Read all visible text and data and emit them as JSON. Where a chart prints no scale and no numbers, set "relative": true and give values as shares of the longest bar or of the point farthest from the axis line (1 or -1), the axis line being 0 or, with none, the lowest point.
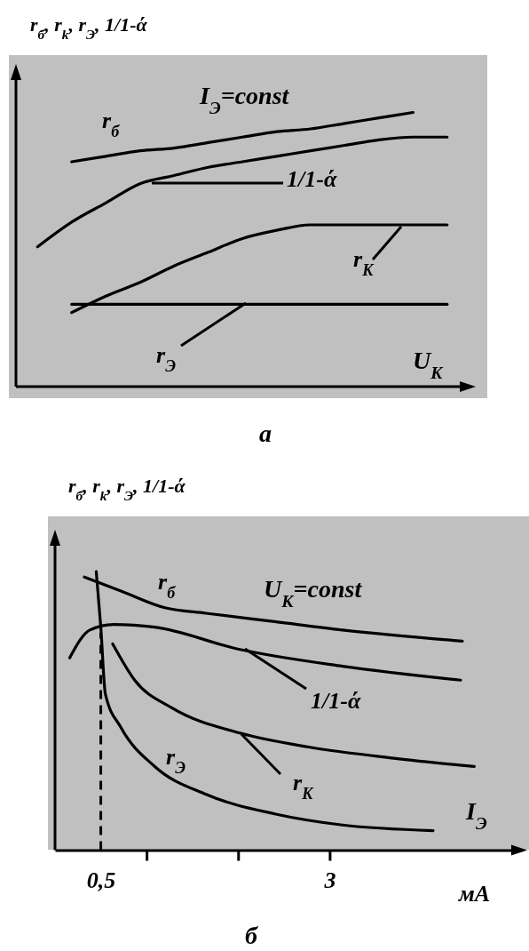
{
  "chart_data": [
    {
      "type": "line",
      "ylabel": "r$_{б}$, r$_{k}$, r$_{Э}$, 1/1-ά",
      "xlabel": "U$_{K}$",
      "relative": true,
      "tick_labels": false,
      "legend": false,
      "grid": false,
      "marker": "none",
      "line_style": "solid",
      "categories": [
        null,
        null,
        null,
        null,
        null,
        null,
        null,
        null,
        null,
        null,
        null,
        null,
        null
      ],
      "annotations": [
        "I$_{Э}$=const",
        "а"
      ],
      "series": [
        {
          "name": "r$_{б}$",
          "color": "#000000",
          "values": [
            null,
            0.82,
            0.84,
            0.86,
            0.87,
            0.89,
            0.91,
            0.93,
            0.94,
            0.96,
            0.98,
            1.0,
            null
          ]
        },
        {
          "name": "1/1-ά",
          "color": "#000000",
          "values": [
            0.51,
            0.6,
            0.67,
            0.74,
            0.77,
            0.8,
            0.82,
            0.84,
            0.86,
            0.88,
            0.9,
            0.91,
            0.91
          ]
        },
        {
          "name": "r$_{K}$",
          "color": "#000000",
          "values": [
            null,
            0.27,
            0.33,
            0.38,
            0.44,
            0.49,
            0.54,
            0.57,
            0.59,
            0.59,
            0.59,
            0.59,
            0.59
          ]
        },
        {
          "name": "r$_{Э}$",
          "color": "#000000",
          "values": [
            null,
            0.3,
            0.3,
            0.3,
            0.3,
            0.3,
            0.3,
            0.3,
            0.3,
            0.3,
            0.3,
            0.3,
            0.3
          ]
        }
      ]
    },
    {
      "type": "line",
      "ylabel": "r$_{б}$, r$_{k}$, r$_{Э}$, 1/1-ά",
      "xlabel": "I$_{Э}$",
      "relative": true,
      "tick_labels": "x",
      "legend": false,
      "grid": false,
      "marker": "none",
      "line_style": "solid",
      "xlim": [
        0,
        5.1
      ],
      "xticks": [
        {
          "value": 0.5,
          "label": "0,5"
        },
        {
          "value": 1,
          "label": null
        },
        {
          "value": 2,
          "label": null
        },
        {
          "value": 3,
          "label": "3"
        }
      ],
      "ref_lines": [
        {
          "axis": "x",
          "value": 0.5,
          "line_style": "dashed"
        }
      ],
      "annotations": [
        "U$_{К}$=const",
        "мА",
        "б"
      ],
      "series": [
        {
          "name": "r$_{б}$",
          "color": "#000000",
          "x": [
            0.32,
            0.72,
            1.2,
            1.65,
            2.4,
            3.14,
            4.45
          ],
          "values": [
            0.98,
            0.93,
            0.87,
            0.85,
            0.82,
            0.79,
            0.75
          ]
        },
        {
          "name": "1/1-ά",
          "color": "#000000",
          "x": [
            0.16,
            0.38,
            0.64,
            1.09,
            2.02,
            3.14,
            4.43
          ],
          "values": [
            0.69,
            0.79,
            0.81,
            0.8,
            0.72,
            0.66,
            0.61
          ]
        },
        {
          "name": "r$_{K}$",
          "color": "#000000",
          "x": [
            0.63,
            0.87,
            1.28,
            2.02,
            2.77,
            3.7,
            4.58
          ],
          "values": [
            0.74,
            0.61,
            0.51,
            0.42,
            0.37,
            0.33,
            0.3
          ]
        },
        {
          "name": "r$_{Э}$",
          "color": "#000000",
          "x": [
            0.45,
            0.5,
            0.55,
            0.72,
            1.09,
            1.65,
            2.4,
            3.14,
            4.13
          ],
          "values": [
            1.0,
            0.8,
            0.56,
            0.44,
            0.3,
            0.2,
            0.13,
            0.09,
            0.07
          ]
        }
      ]
    }
  ]
}
